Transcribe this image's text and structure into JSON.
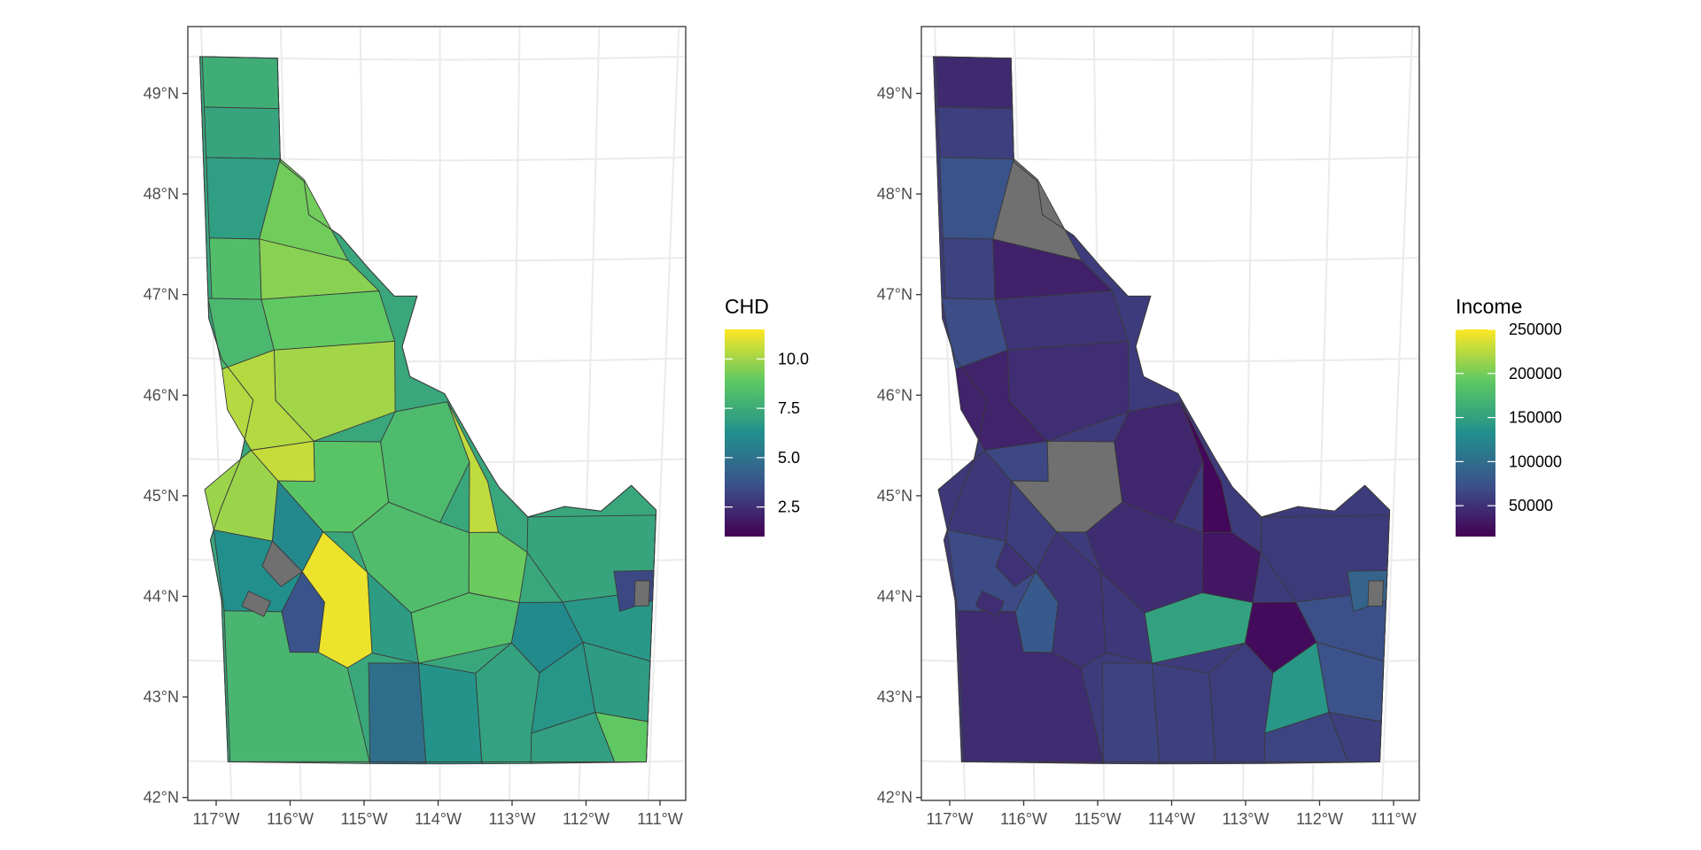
{
  "panels": [
    {
      "id": "chd",
      "legend": {
        "title": "CHD",
        "min": 1.0,
        "max": 11.5,
        "breaks": [
          2.5,
          5.0,
          7.5,
          10.0
        ],
        "break_labels": [
          "2.5",
          "5.0",
          "7.5",
          "10.0"
        ],
        "colors": [
          "#440154",
          "#3b528b",
          "#21908c",
          "#5dc863",
          "#fde725"
        ]
      },
      "missing_color": "#707070"
    },
    {
      "id": "income",
      "legend": {
        "title": "Income",
        "min": 15000,
        "max": 250000,
        "breaks": [
          50000,
          100000,
          150000,
          200000,
          250000
        ],
        "break_labels": [
          "50000",
          "100000",
          "150000",
          "200000",
          "250000"
        ],
        "colors": [
          "#440154",
          "#3b528b",
          "#21908c",
          "#5dc863",
          "#fde725"
        ]
      },
      "missing_color": "#707070"
    }
  ],
  "axes": {
    "lat_labels": [
      "49°N",
      "48°N",
      "47°N",
      "46°N",
      "45°N",
      "44°N",
      "43°N",
      "42°N"
    ],
    "lon_labels": [
      "117°W",
      "116°W",
      "115°W",
      "114°W",
      "113°W",
      "112°W",
      "111°W"
    ]
  },
  "regions_chd": [
    {
      "id": "boundary-county",
      "value": 7.6
    },
    {
      "id": "bonner-county",
      "value": 7.2
    },
    {
      "id": "kootenai-area",
      "value": 6.9
    },
    {
      "id": "shoshone-north",
      "value": 9.2
    },
    {
      "id": "shoshone-south",
      "value": 9.6
    },
    {
      "id": "benewah-latah",
      "value": 8.4
    },
    {
      "id": "clearwater-county",
      "value": 8.9
    },
    {
      "id": "nez-perce",
      "value": 8.1
    },
    {
      "id": "idaho-county-north",
      "value": 10.0
    },
    {
      "id": "idaho-county-west",
      "value": 10.3
    },
    {
      "id": "lemhi-north",
      "value": 8.2
    },
    {
      "id": "lemhi-east-strip",
      "value": 10.5
    },
    {
      "id": "adams-washington",
      "value": 9.9
    },
    {
      "id": "payette-gem",
      "value": 10.6
    },
    {
      "id": "valley-county",
      "value": 8.7
    },
    {
      "id": "boise-county",
      "value": 5.9
    },
    {
      "id": "custer-county",
      "value": 8.3
    },
    {
      "id": "custer-east",
      "value": 9.1
    },
    {
      "id": "clark-fremont",
      "value": 7.2
    },
    {
      "id": "canyon-area",
      "value": 6.2
    },
    {
      "id": "ada-east",
      "value": 3.7
    },
    {
      "id": "elmore-county",
      "value": 11.2
    },
    {
      "id": "owyhee-county",
      "value": 8.0
    },
    {
      "id": "camas-gooding",
      "value": 6.8
    },
    {
      "id": "blaine-east",
      "value": 8.5
    },
    {
      "id": "bingham-area",
      "value": 6.0
    },
    {
      "id": "bonneville-area",
      "value": 6.6
    },
    {
      "id": "twin-falls",
      "value": 4.8
    },
    {
      "id": "cassia-west",
      "value": 6.4
    },
    {
      "id": "cassia-east",
      "value": 7.1
    },
    {
      "id": "power-county",
      "value": 6.5
    },
    {
      "id": "bannock-area",
      "value": 7.0
    },
    {
      "id": "caribou-area",
      "value": 6.8
    },
    {
      "id": "bear-lake",
      "value": 8.9
    },
    {
      "id": "teton-area",
      "value": 3.3
    },
    {
      "id": "missing-1",
      "value": null
    },
    {
      "id": "missing-2",
      "value": null
    },
    {
      "id": "missing-3",
      "value": null
    }
  ],
  "regions_income": [
    {
      "id": "boundary-county",
      "value": 45000
    },
    {
      "id": "bonner-county",
      "value": 60000
    },
    {
      "id": "kootenai-area",
      "value": 75000
    },
    {
      "id": "shoshone-north",
      "value": null
    },
    {
      "id": "shoshone-south",
      "value": 38000
    },
    {
      "id": "benewah-latah",
      "value": 62000
    },
    {
      "id": "clearwater-county",
      "value": 52000
    },
    {
      "id": "nez-perce",
      "value": 70000
    },
    {
      "id": "idaho-county-north",
      "value": 48000
    },
    {
      "id": "idaho-county-west",
      "value": 40000
    },
    {
      "id": "lemhi-north",
      "value": 42000
    },
    {
      "id": "lemhi-east-strip",
      "value": 20000
    },
    {
      "id": "adams-washington",
      "value": 55000
    },
    {
      "id": "payette-gem",
      "value": 66000
    },
    {
      "id": "valley-county",
      "value": null
    },
    {
      "id": "boise-county",
      "value": 58000
    },
    {
      "id": "custer-county",
      "value": 47000
    },
    {
      "id": "custer-east",
      "value": 30000
    },
    {
      "id": "clark-fremont",
      "value": 56000
    },
    {
      "id": "canyon-area",
      "value": 68000
    },
    {
      "id": "ada-east",
      "value": 80000
    },
    {
      "id": "elmore-county",
      "value": 52000
    },
    {
      "id": "owyhee-county",
      "value": 46000
    },
    {
      "id": "camas-gooding",
      "value": 54000
    },
    {
      "id": "blaine-east",
      "value": 150000
    },
    {
      "id": "bingham-area",
      "value": 22000
    },
    {
      "id": "bonneville-area",
      "value": 72000
    },
    {
      "id": "twin-falls",
      "value": 62000
    },
    {
      "id": "cassia-west",
      "value": 60000
    },
    {
      "id": "cassia-east",
      "value": 58000
    },
    {
      "id": "power-county",
      "value": 140000
    },
    {
      "id": "bannock-area",
      "value": 64000
    },
    {
      "id": "caribou-area",
      "value": 74000
    },
    {
      "id": "bear-lake",
      "value": 60000
    },
    {
      "id": "teton-area",
      "value": 90000
    },
    {
      "id": "missing-1",
      "value": 50000
    },
    {
      "id": "missing-2",
      "value": 48000
    },
    {
      "id": "missing-3",
      "value": null
    }
  ]
}
